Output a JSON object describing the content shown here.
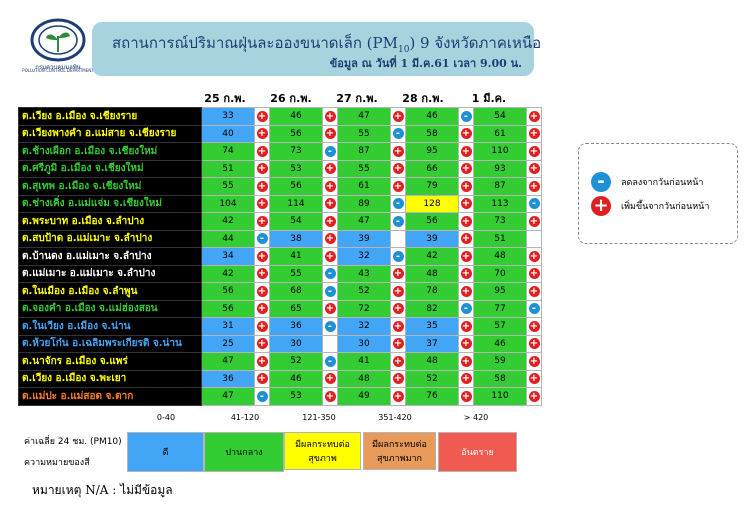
{
  "logo": {
    "name": "กรมควบคุมมลพิษ",
    "subtitle": "POLLUTION CONTROL DEPARTMENT"
  },
  "header": {
    "title_pre": "สถานการณ์ปริมาณฝุ่นละอองขนาดเล็ก (PM",
    "title_sub": "10",
    "title_post": ") 9 จังหวัดภาคเหนือ",
    "subtitle": "ข้อมูล ณ วันที่ 1 มี.ค.61 เวลา 9.00 น."
  },
  "dates": [
    "25 ก.พ.",
    "26 ก.พ.",
    "27 ก.พ.",
    "28 ก.พ.",
    "1 มี.ค."
  ],
  "colors": {
    "good": "#42a5f5",
    "moderate": "#33cc33",
    "unhealthy_sensitive": "#ffff00",
    "unhealthy": "#e89a5a",
    "dangerous": "#f05a50",
    "up": "#e02020",
    "down": "#1e90d6"
  },
  "rows": [
    {
      "name": "ต.เวียง อ.เมือง จ.เชียงราย",
      "color": "#ffff00",
      "v": [
        "33",
        "46",
        "47",
        "46",
        "54"
      ],
      "t": [
        "up",
        "up",
        "up",
        "down",
        "up"
      ]
    },
    {
      "name": "ต.เวียงพางคำ อ.แม่สาย จ.เชียงราย",
      "color": "#ffff00",
      "v": [
        "40",
        "56",
        "55",
        "58",
        "61"
      ],
      "t": [
        "up",
        "up",
        "down",
        "up",
        "up"
      ]
    },
    {
      "name": "ต.ช้างเผือก อ.เมือง จ.เชียงใหม่",
      "color": "#33cc33",
      "v": [
        "74",
        "73",
        "87",
        "95",
        "110"
      ],
      "t": [
        "up",
        "down",
        "up",
        "up",
        "up"
      ]
    },
    {
      "name": "ต.ศรีภูมิ อ.เมือง จ.เชียงใหม่",
      "color": "#33cc33",
      "v": [
        "51",
        "53",
        "55",
        "66",
        "93"
      ],
      "t": [
        "up",
        "up",
        "up",
        "up",
        "up"
      ]
    },
    {
      "name": "ต.สุเทพ อ.เมือง จ.เชียงใหม่",
      "color": "#33cc33",
      "v": [
        "55",
        "56",
        "61",
        "79",
        "87"
      ],
      "t": [
        "up",
        "up",
        "up",
        "up",
        "up"
      ]
    },
    {
      "name": "ต.ช่างเคิ่ง อ.แม่แจ่ม จ.เชียงใหม่",
      "color": "#33cc33",
      "v": [
        "104",
        "114",
        "89",
        "128",
        "113"
      ],
      "t": [
        "up",
        "up",
        "down",
        "up",
        "down"
      ]
    },
    {
      "name": "ต.พระบาท อ.เมือง จ.ลำปาง",
      "color": "#ffff00",
      "v": [
        "42",
        "54",
        "47",
        "56",
        "73"
      ],
      "t": [
        "up",
        "up",
        "down",
        "up",
        "up"
      ]
    },
    {
      "name": "ต.สบป้าด อ.แม่เมาะ จ.ลำปาง",
      "color": "#ffff00",
      "v": [
        "44",
        "38",
        "39",
        "39",
        "51"
      ],
      "t": [
        "down",
        "up",
        "",
        "up",
        ""
      ]
    },
    {
      "name": "ต.บ้านดง อ.แม่เมาะ จ.ลำปาง",
      "color": "#ffffff",
      "v": [
        "34",
        "41",
        "32",
        "42",
        "48"
      ],
      "t": [
        "up",
        "up",
        "down",
        "up",
        "up"
      ]
    },
    {
      "name": "ต.แม่เมาะ อ.แม่เมาะ จ.ลำปาง",
      "color": "#ffffff",
      "v": [
        "42",
        "55",
        "43",
        "48",
        "70"
      ],
      "t": [
        "up",
        "down",
        "up",
        "up",
        "up"
      ]
    },
    {
      "name": "ต.ในเมือง อ.เมือง จ.ลำพูน",
      "color": "#ffff00",
      "v": [
        "56",
        "68",
        "52",
        "78",
        "95"
      ],
      "t": [
        "up",
        "down",
        "up",
        "up",
        "up"
      ]
    },
    {
      "name": "ต.จองคำ อ.เมือง จ.แม่ฮ่องสอน",
      "color": "#33cc33",
      "v": [
        "56",
        "65",
        "72",
        "82",
        "77"
      ],
      "t": [
        "up",
        "up",
        "up",
        "down",
        "down"
      ]
    },
    {
      "name": "ต.ในเวียง อ.เมือง จ.น่าน",
      "color": "#42a5f5",
      "v": [
        "31",
        "36",
        "32",
        "35",
        "57"
      ],
      "t": [
        "up",
        "down",
        "up",
        "up",
        "up"
      ]
    },
    {
      "name": "ต.ห้วยโก๋น อ.เฉลิมพระเกียรติ จ.น่าน",
      "color": "#42a5f5",
      "v": [
        "25",
        "30",
        "30",
        "37",
        "46"
      ],
      "t": [
        "up",
        "",
        "up",
        "up",
        "up"
      ]
    },
    {
      "name": "ต.นาจักร อ.เมือง จ.แพร่",
      "color": "#ffff00",
      "v": [
        "47",
        "52",
        "41",
        "48",
        "59"
      ],
      "t": [
        "up",
        "down",
        "up",
        "up",
        "up"
      ]
    },
    {
      "name": "ต.เวียง อ.เมือง จ.พะเยา",
      "color": "#ffff00",
      "v": [
        "36",
        "46",
        "48",
        "52",
        "58"
      ],
      "t": [
        "up",
        "up",
        "up",
        "up",
        "up"
      ]
    },
    {
      "name": "ต.แม่ปะ อ.แม่สอด จ.ตาก",
      "color": "#ff7f27",
      "v": [
        "47",
        "53",
        "49",
        "76",
        "110"
      ],
      "t": [
        "down",
        "up",
        "up",
        "up",
        "up"
      ]
    }
  ],
  "legend": {
    "down_label": "ลดลงจากวันก่อนหน้า",
    "up_label": "เพิ่มขึ้นจากวันก่อนหน้า",
    "down_symbol": "-",
    "up_symbol": "+"
  },
  "scale": {
    "label1": "ค่าเฉลี่ย 24 ชม. (PM10)",
    "label2": "ความหมายของสี",
    "levels": [
      {
        "range": "0-40",
        "label": "ดี",
        "color": "#42a5f5"
      },
      {
        "range": "41-120",
        "label": "ปานกลาง",
        "color": "#33cc33"
      },
      {
        "range": "121-350",
        "label": "มีผลกระทบต่อสุขภาพ",
        "color": "#ffff00"
      },
      {
        "range": "351-420",
        "label": "มีผลกระทบต่อสุขภาพมาก",
        "color": "#e89a5a"
      },
      {
        "range": "> 420",
        "label": "อันตราย",
        "color": "#f05a50"
      }
    ]
  },
  "note": "หมายเหตุ N/A : ไม่มีข้อมูล"
}
